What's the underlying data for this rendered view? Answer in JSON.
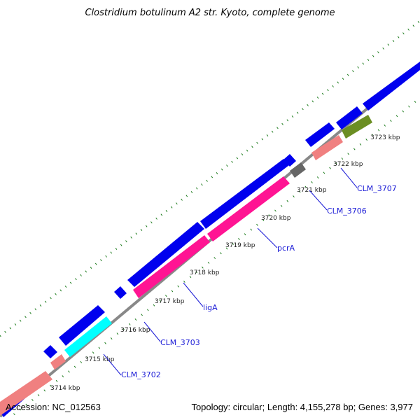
{
  "title": "Clostridium botulinum A2 str. Kyoto, complete genome",
  "accession": "Accession: NC_012563",
  "summary": "Topology: circular; Length: 4,155,278 bp; Genes: 3,977",
  "ticks": [
    "3714 kbp",
    "3715 kbp",
    "3716 kbp",
    "3717 kbp",
    "3718 kbp",
    "3719 kbp",
    "3720 kbp",
    "3721 kbp",
    "3722 kbp",
    "3723 kbp"
  ],
  "gene_labels": [
    "CLM_3702",
    "CLM_3703",
    "ligA",
    "pcrA",
    "CLM_3706",
    "CLM_3707"
  ],
  "colors": {
    "forward_cds": "#0000ee",
    "salmon": "#f08080",
    "cyan": "#00ffff",
    "magenta": "#ff1493",
    "gray_gene": "#666666",
    "olive": "#6b8e23",
    "label_blue": "#1a1ad6",
    "dot_green": "#1a7a1a",
    "backbone": "#888888"
  }
}
